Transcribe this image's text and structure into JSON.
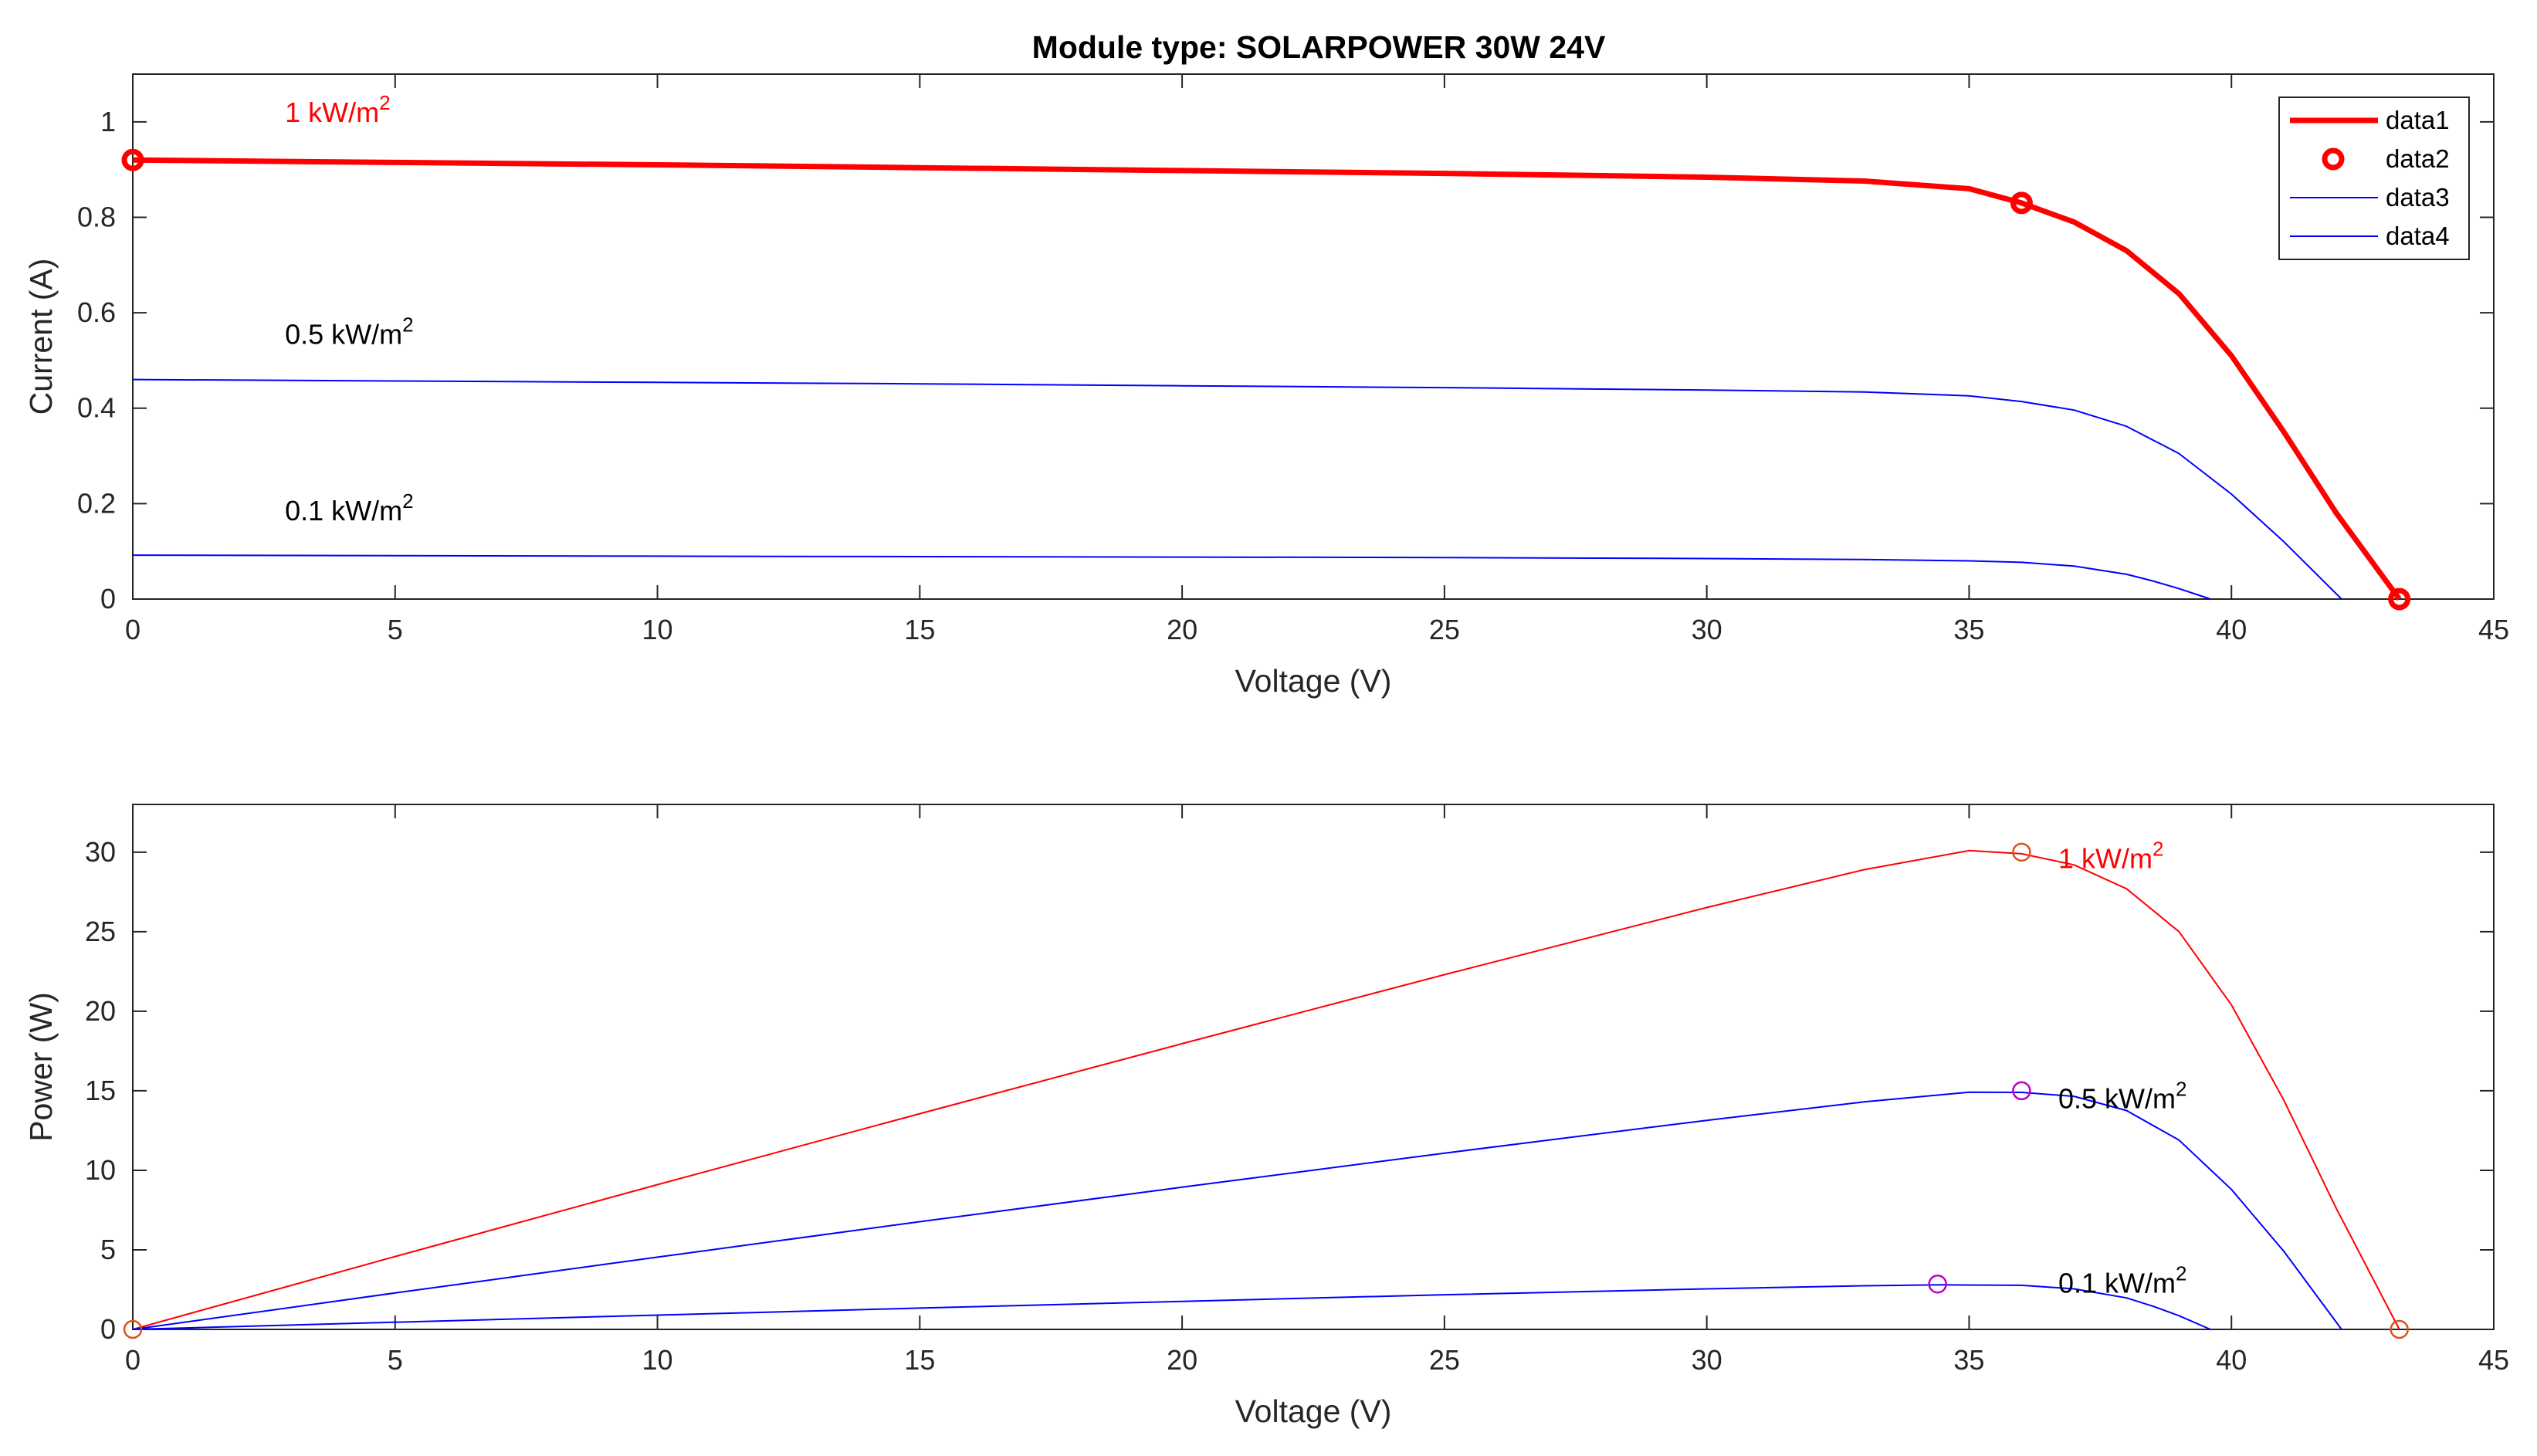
{
  "figure": {
    "title": "Module type: SOLARPOWER 30W 24V"
  },
  "colors": {
    "red": "#ff0000",
    "blue": "#0000ff",
    "magenta": "#bf00bf",
    "mpp_red": "#d95319",
    "axis": "#262626"
  },
  "chart_data": [
    {
      "type": "line",
      "title": "Module type: SOLARPOWER 30W 24V",
      "xlabel": "Voltage (V)",
      "ylabel": "Current (A)",
      "xlim": [
        0,
        45
      ],
      "ylim": [
        0,
        1.1
      ],
      "xticks": [
        0,
        5,
        10,
        15,
        20,
        25,
        30,
        35,
        40,
        45
      ],
      "yticks": [
        0,
        0.2,
        0.4,
        0.6,
        0.8,
        1
      ],
      "ytick_labels": [
        "0",
        "0.2",
        "0.4",
        "0.6",
        "0.8",
        "1"
      ],
      "grid": false,
      "legend": {
        "placement": "top-right",
        "entries": [
          "data1",
          "data2",
          "data3",
          "data4"
        ]
      },
      "series": [
        {
          "name": "data1",
          "color": "#ff0000",
          "style": "thick-line",
          "x": [
            0,
            5,
            10,
            15,
            20,
            25,
            30,
            33,
            35,
            36,
            37,
            38,
            39,
            40,
            41,
            42,
            43.2
          ],
          "y": [
            0.92,
            0.915,
            0.91,
            0.904,
            0.898,
            0.892,
            0.884,
            0.876,
            0.86,
            0.83,
            0.79,
            0.73,
            0.64,
            0.51,
            0.35,
            0.18,
            0
          ]
        },
        {
          "name": "data2",
          "color": "#ff0000",
          "style": "circle-markers",
          "x": [
            0,
            36,
            43.2
          ],
          "y": [
            0.92,
            0.83,
            0
          ]
        },
        {
          "name": "data3",
          "color": "#0000ff",
          "style": "thin-line",
          "x": [
            0,
            5,
            10,
            15,
            20,
            25,
            30,
            33,
            35,
            36,
            37,
            38,
            39,
            40,
            41,
            42.1
          ],
          "y": [
            0.46,
            0.457,
            0.454,
            0.451,
            0.447,
            0.443,
            0.438,
            0.434,
            0.426,
            0.414,
            0.396,
            0.362,
            0.305,
            0.22,
            0.12,
            0
          ]
        },
        {
          "name": "data4",
          "color": "#0000ff",
          "style": "thin-line",
          "x": [
            0,
            5,
            10,
            15,
            20,
            25,
            30,
            33,
            35,
            36,
            37,
            38,
            38.5,
            39,
            39.6
          ],
          "y": [
            0.092,
            0.091,
            0.09,
            0.089,
            0.088,
            0.087,
            0.085,
            0.083,
            0.08,
            0.077,
            0.069,
            0.052,
            0.038,
            0.022,
            0
          ]
        }
      ],
      "annotations": [
        {
          "text": "1 kW/m",
          "sup": "2",
          "x": 2.9,
          "y": 1.0,
          "color": "#ff0000"
        },
        {
          "text": "0.5 kW/m",
          "sup": "2",
          "x": 2.9,
          "y": 0.535,
          "color": "#000000"
        },
        {
          "text": "0.1 kW/m",
          "sup": "2",
          "x": 2.9,
          "y": 0.165,
          "color": "#000000"
        }
      ]
    },
    {
      "type": "line",
      "title": "",
      "xlabel": "Voltage (V)",
      "ylabel": "Power (W)",
      "xlim": [
        0,
        45
      ],
      "ylim": [
        0,
        33
      ],
      "xticks": [
        0,
        5,
        10,
        15,
        20,
        25,
        30,
        35,
        40,
        45
      ],
      "yticks": [
        0,
        5,
        10,
        15,
        20,
        25,
        30
      ],
      "grid": false,
      "series": [
        {
          "color": "#ff0000",
          "x": [
            0,
            5,
            10,
            15,
            20,
            25,
            30,
            33,
            35,
            36,
            37,
            38,
            39,
            40,
            41,
            42,
            43.2
          ],
          "y": [
            0,
            4.58,
            9.1,
            13.56,
            17.96,
            22.3,
            26.52,
            28.9,
            30.1,
            29.9,
            29.2,
            27.7,
            25.0,
            20.4,
            14.4,
            7.6,
            0
          ]
        },
        {
          "color": "#0000ff",
          "x": [
            0,
            5,
            10,
            15,
            20,
            25,
            30,
            33,
            35,
            36,
            37,
            38,
            39,
            40,
            41,
            42.1
          ],
          "y": [
            0,
            2.29,
            4.54,
            6.77,
            8.94,
            11.08,
            13.14,
            14.3,
            14.91,
            14.9,
            14.65,
            13.76,
            11.9,
            8.8,
            4.9,
            0
          ]
        },
        {
          "color": "#0000ff",
          "x": [
            0,
            5,
            10,
            15,
            20,
            25,
            30,
            33,
            34.5,
            36,
            37,
            38,
            38.5,
            39,
            39.6
          ],
          "y": [
            0,
            0.45,
            0.9,
            1.34,
            1.76,
            2.18,
            2.55,
            2.74,
            2.8,
            2.77,
            2.55,
            1.98,
            1.46,
            0.86,
            0
          ]
        }
      ],
      "markers": [
        {
          "x": 0,
          "y": 0,
          "color": "#d95319"
        },
        {
          "x": 36,
          "y": 30,
          "color": "#d95319"
        },
        {
          "x": 43.2,
          "y": 0,
          "color": "#d95319"
        },
        {
          "x": 36,
          "y": 15,
          "color": "#bf00bf"
        },
        {
          "x": 34.4,
          "y": 2.85,
          "color": "#bf00bf"
        }
      ],
      "annotations": [
        {
          "text": "1 kW/m",
          "sup": "2",
          "x": 36.7,
          "y": 29.0,
          "color": "#ff0000"
        },
        {
          "text": "0.5 kW/m",
          "sup": "2",
          "x": 36.7,
          "y": 13.9,
          "color": "#000000"
        },
        {
          "text": "0.1 kW/m",
          "sup": "2",
          "x": 36.7,
          "y": 2.3,
          "color": "#000000"
        }
      ]
    }
  ]
}
